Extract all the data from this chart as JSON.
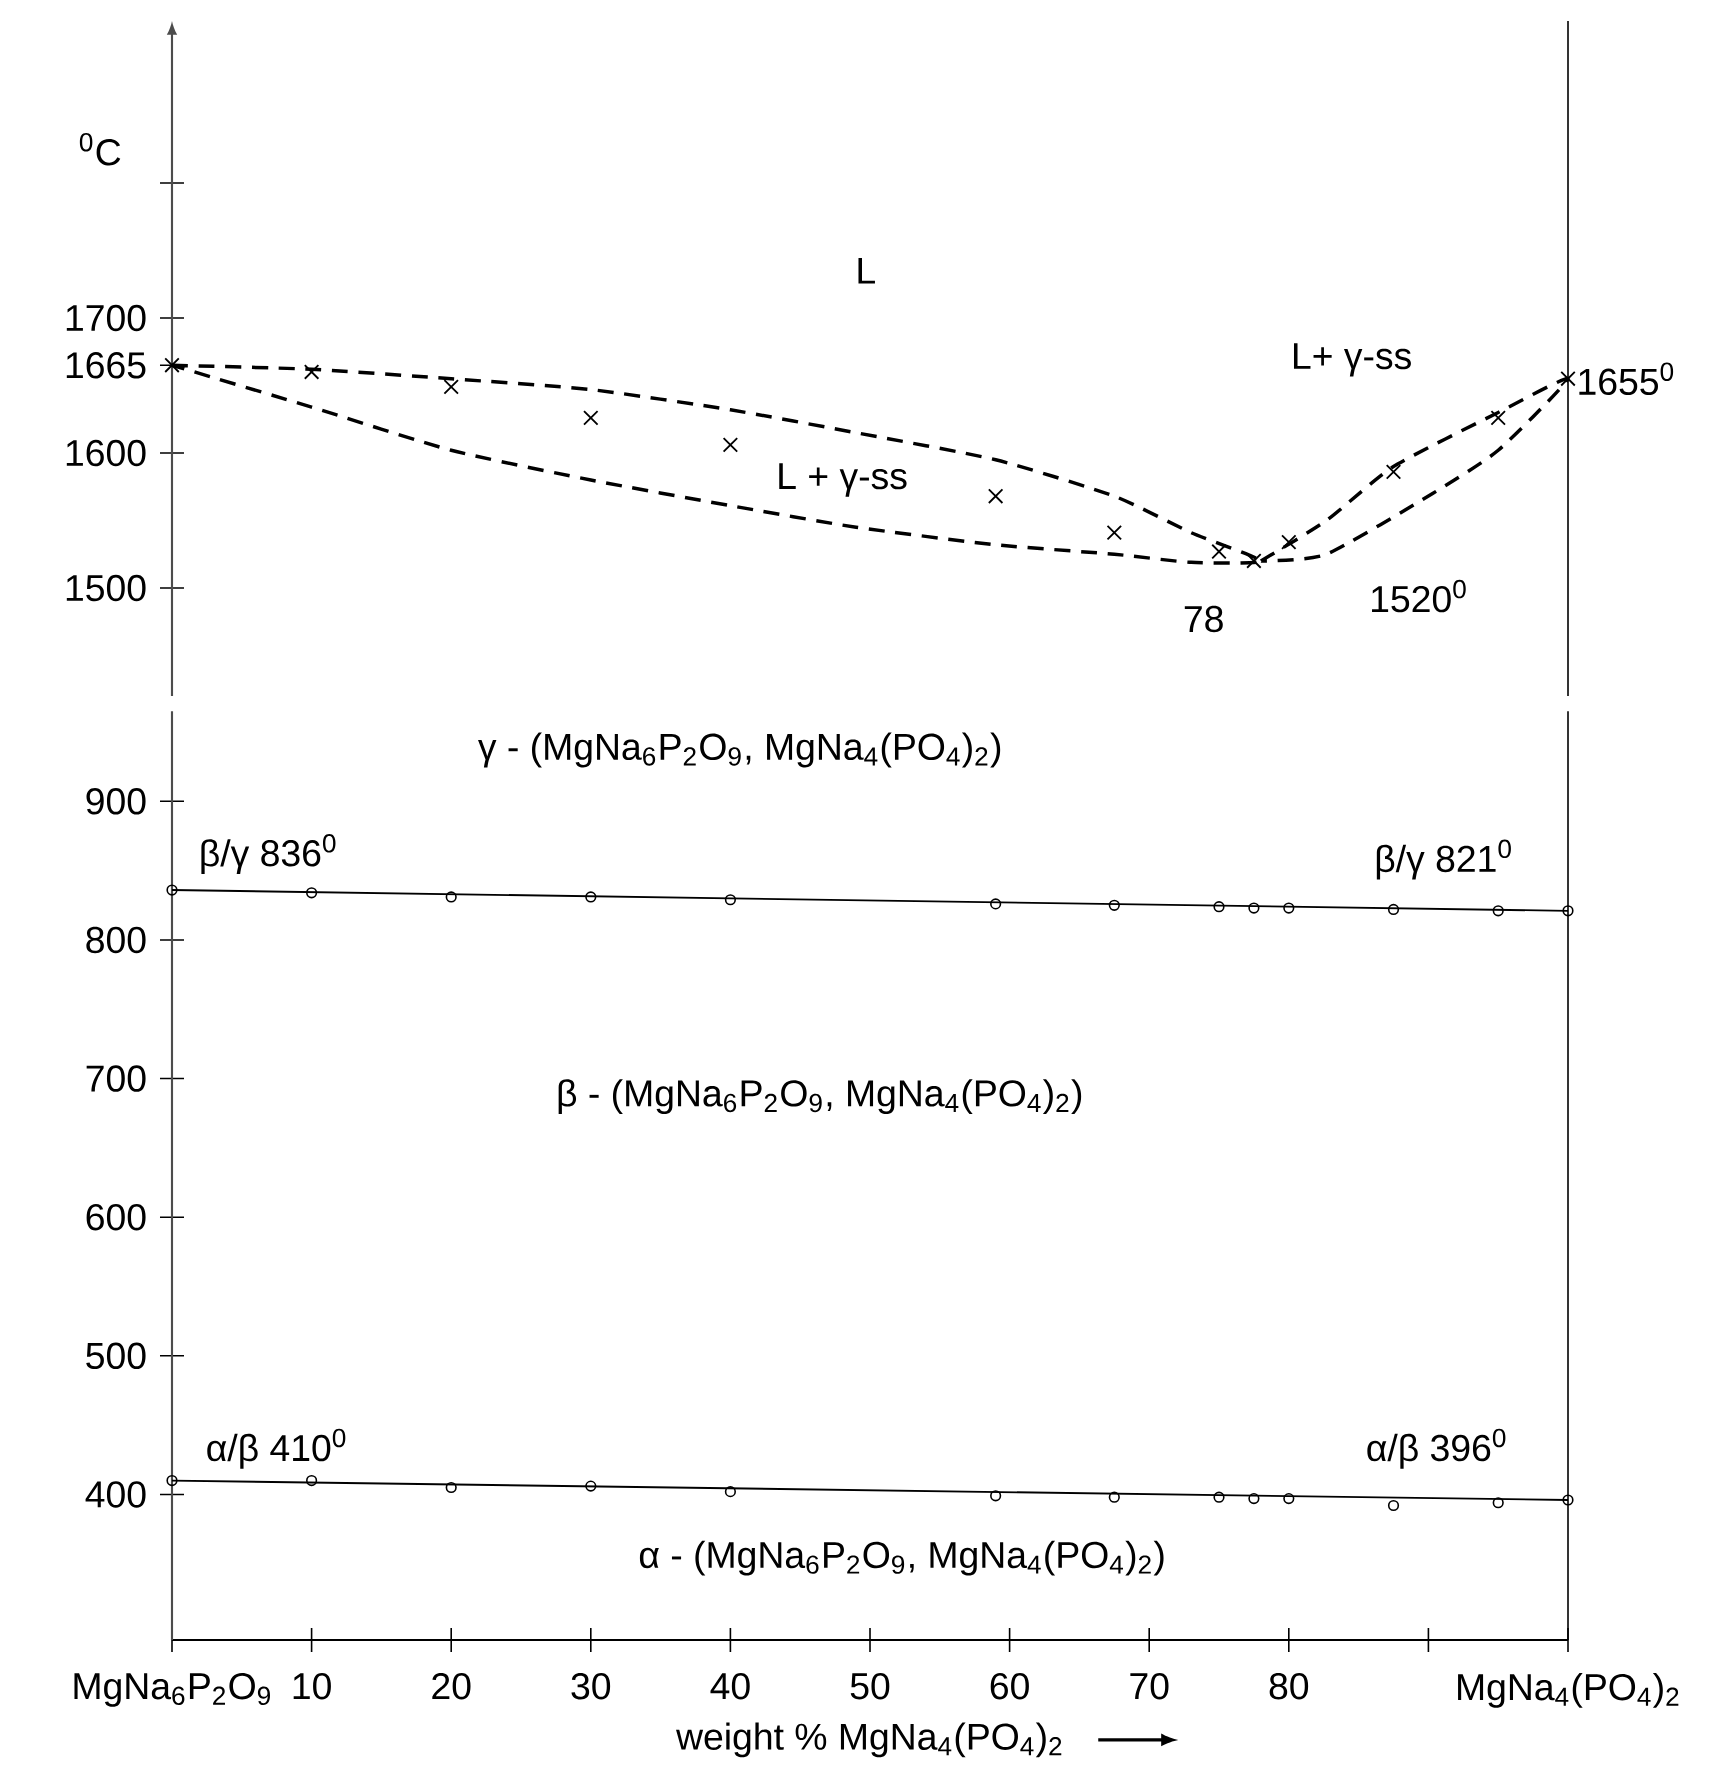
{
  "chart_data": [
    {
      "type": "scatter",
      "xlim": [
        0,
        100
      ],
      "ylim": [
        1420,
        1920
      ],
      "yticks": [
        1500,
        1600,
        {
          "value": 1665,
          "label": "1665"
        },
        1700,
        {
          "value": 1800,
          "label": null
        }
      ],
      "tick_labels": "y",
      "ylabel": "$^{0}$C",
      "annotations": [
        "L",
        "L + γ-ss",
        "L+ γ-ss",
        {
          "text": "1655$^{0}$",
          "x": 100,
          "y": 1655
        },
        "78",
        "1520$^{0}$"
      ],
      "series": [
        {
          "marker": "cross",
          "color": "#000000",
          "x": [
            0,
            10,
            20,
            30,
            40,
            59,
            67.5,
            75,
            77.5,
            80,
            87.5,
            95,
            100
          ],
          "values": [
            1665,
            1660,
            1649,
            1626,
            1606,
            1568,
            1541,
            1527,
            1520,
            1534,
            1586,
            1626,
            1655
          ]
        }
      ]
    },
    {
      "type": "scatter",
      "xlim": [
        0,
        100
      ],
      "ylim": [
        295,
        965
      ],
      "yticks": [
        400,
        500,
        600,
        700,
        800,
        900
      ],
      "xticks": [
        {
          "value": 0,
          "label": "MgNa$_{6}$P$_{2}$O$_{9}$"
        },
        10,
        20,
        30,
        40,
        50,
        60,
        70,
        80,
        {
          "value": 90,
          "label": null
        },
        {
          "value": 100,
          "label": "MgNa$_{4}$(PO$_{4}$)$_{2}$"
        }
      ],
      "xlabel": "weight % MgNa$_{4}$(PO$_{4}$)$_{2}$",
      "annotations": [
        "γ - (MgNa$_{6}$P$_{2}$O$_{9}$, MgNa$_{4}$(PO$_{4}$)$_{2}$)",
        "β/γ 836$^{0}$",
        "β/γ 821$^{0}$",
        "β - (MgNa$_{6}$P$_{2}$O$_{9}$, MgNa$_{4}$(PO$_{4}$)$_{2}$)",
        "α/β 410$^{0}$",
        "α/β 396$^{0}$",
        "α - (MgNa$_{6}$P$_{2}$O$_{9}$, MgNa$_{4}$(PO$_{4}$)$_{2}$)"
      ],
      "series": [
        {
          "type": "line",
          "line_style": "solid",
          "color": "#000000",
          "x": [
            0,
            100
          ],
          "values": [
            836,
            821
          ]
        },
        {
          "marker": "circle",
          "color": "#000000",
          "x": [
            0,
            10,
            20,
            30,
            40,
            59,
            67.5,
            75,
            77.5,
            80,
            87.5,
            95,
            100
          ],
          "values": [
            836,
            834,
            831,
            831,
            829,
            826,
            825,
            824,
            823,
            823,
            822,
            821,
            821
          ]
        },
        {
          "type": "line",
          "line_style": "solid",
          "color": "#000000",
          "x": [
            0,
            100
          ],
          "values": [
            410,
            396
          ]
        },
        {
          "marker": "circle",
          "color": "#000000",
          "x": [
            0,
            10,
            20,
            30,
            40,
            59,
            67.5,
            75,
            77.5,
            80,
            87.5,
            95,
            100
          ],
          "values": [
            410,
            410,
            405,
            406,
            402,
            399,
            398,
            398,
            397,
            397,
            392,
            394,
            396
          ]
        }
      ]
    }
  ]
}
